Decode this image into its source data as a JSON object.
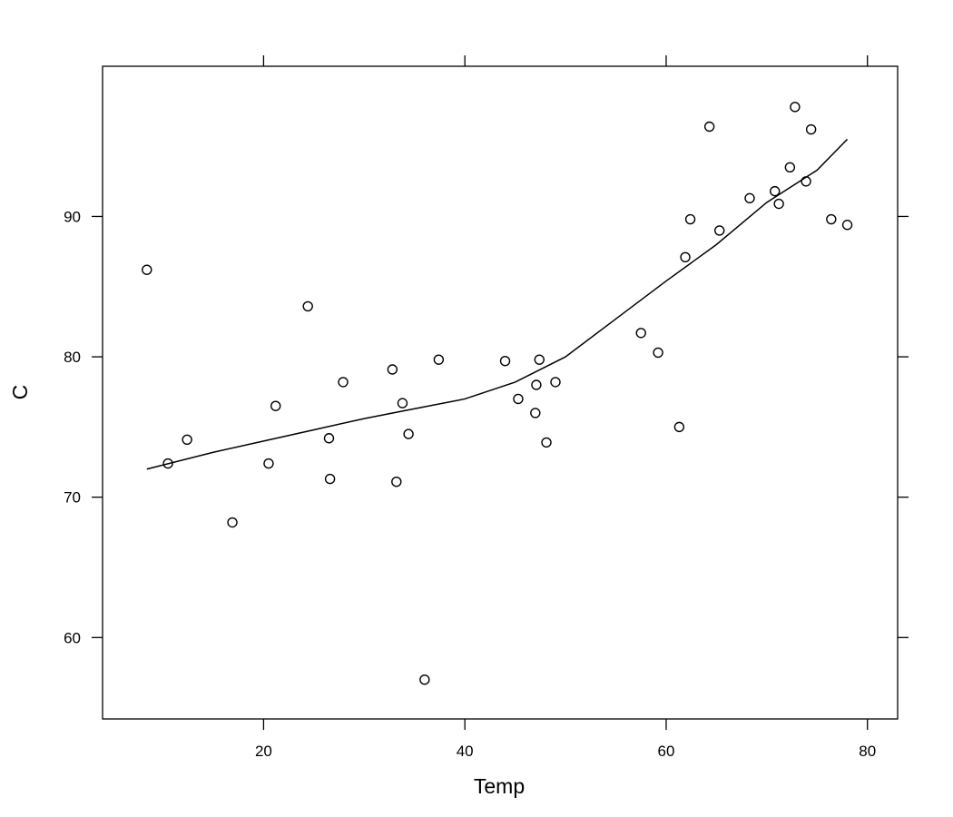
{
  "chart_data": {
    "type": "scatter",
    "xlabel": "Temp",
    "ylabel": "C",
    "xlim": [
      4,
      83
    ],
    "ylim": [
      54.2,
      100.7
    ],
    "x_ticks": [
      20,
      40,
      60,
      80
    ],
    "y_ticks": [
      60,
      70,
      80,
      90
    ],
    "grid": false,
    "legend": "none",
    "point_style": "open-circle",
    "colors": {
      "points": "#000000",
      "line": "#000000",
      "frame": "#000000"
    },
    "points": [
      [
        8.4,
        86.2
      ],
      [
        10.5,
        72.4
      ],
      [
        12.4,
        74.1
      ],
      [
        16.9,
        68.2
      ],
      [
        20.5,
        72.4
      ],
      [
        21.2,
        76.5
      ],
      [
        24.4,
        83.6
      ],
      [
        26.5,
        74.2
      ],
      [
        26.6,
        71.3
      ],
      [
        27.9,
        78.2
      ],
      [
        32.8,
        79.1
      ],
      [
        33.2,
        71.1
      ],
      [
        33.8,
        76.7
      ],
      [
        34.4,
        74.5
      ],
      [
        36.0,
        57.0
      ],
      [
        37.4,
        79.8
      ],
      [
        44.0,
        79.7
      ],
      [
        45.3,
        77.0
      ],
      [
        47.0,
        76.0
      ],
      [
        47.1,
        78.0
      ],
      [
        47.4,
        79.8
      ],
      [
        48.1,
        73.9
      ],
      [
        49.0,
        78.2
      ],
      [
        57.5,
        81.7
      ],
      [
        59.2,
        80.3
      ],
      [
        61.3,
        75.0
      ],
      [
        61.9,
        87.1
      ],
      [
        62.4,
        89.8
      ],
      [
        64.3,
        96.4
      ],
      [
        65.3,
        89.0
      ],
      [
        68.3,
        91.3
      ],
      [
        70.8,
        91.8
      ],
      [
        71.2,
        90.9
      ],
      [
        72.3,
        93.5
      ],
      [
        72.8,
        97.8
      ],
      [
        73.9,
        92.5
      ],
      [
        74.4,
        96.2
      ],
      [
        76.4,
        89.8
      ],
      [
        78.0,
        89.4
      ]
    ],
    "smooth_line": [
      [
        8.4,
        72.0
      ],
      [
        15,
        73.2
      ],
      [
        20,
        74.0
      ],
      [
        25,
        74.8
      ],
      [
        30,
        75.6
      ],
      [
        35,
        76.3
      ],
      [
        40,
        77.0
      ],
      [
        45,
        78.2
      ],
      [
        50,
        80.0
      ],
      [
        55,
        82.7
      ],
      [
        60,
        85.4
      ],
      [
        65,
        88.0
      ],
      [
        70,
        91.0
      ],
      [
        75,
        93.3
      ],
      [
        78.0,
        95.5
      ]
    ]
  }
}
